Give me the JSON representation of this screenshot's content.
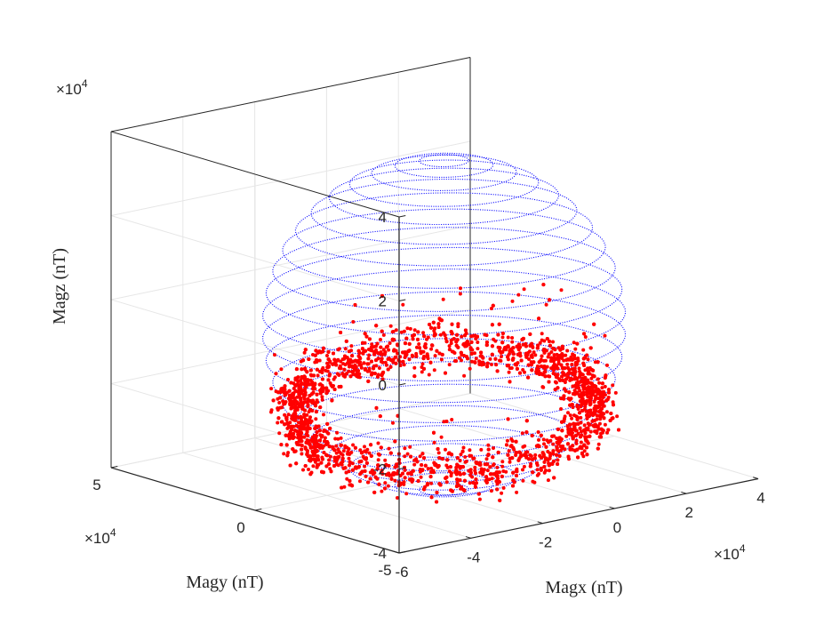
{
  "chart_data": {
    "type": "scatter",
    "subtype": "3d-scatter-with-sphere-wireframe",
    "title": "",
    "xlabel": "Magx (nT)",
    "ylabel": "Magy (nT)",
    "zlabel": "Magz (nT)",
    "x_ticks": [
      -6,
      -4,
      -2,
      0,
      2,
      4
    ],
    "y_ticks": [
      -5,
      0,
      5
    ],
    "z_ticks": [
      -4,
      -2,
      0,
      2,
      4
    ],
    "x_tick_labels": [
      "-6",
      "-4",
      "-2",
      "0",
      "2",
      "4"
    ],
    "y_tick_labels": [
      "-5",
      "0",
      "5"
    ],
    "z_tick_labels": [
      "-4",
      "-2",
      "0",
      "2",
      "4"
    ],
    "x_multiplier": "×10",
    "y_multiplier": "×10",
    "z_multiplier": "×10",
    "multiplier_exponent": "4",
    "scale_factor": 10000,
    "xlim": [
      -6,
      4
    ],
    "ylim": [
      -5,
      5
    ],
    "zlim": [
      -4,
      4
    ],
    "grid": true,
    "sphere": {
      "center": [
        -0.9,
        -0.2,
        -0.45
      ],
      "radius": 3.95,
      "color": "#0000ff",
      "latitude_rings": 23,
      "style": "dotted"
    },
    "series": [
      {
        "color": "#ff0000",
        "marker": "dot",
        "approx_point_count": 4000,
        "description_values": {
          "ring_center": [
            -0.9,
            -0.2,
            -2.45
          ],
          "ring_radius_x": 3.3,
          "ring_radius_y": 3.3,
          "ring_tilt_z_amplitude": 0.6
        }
      }
    ],
    "colors": {
      "sphere": "#0000ff",
      "points": "#ff0000",
      "axes": "#262626",
      "grid": "#e6e6e6"
    }
  }
}
